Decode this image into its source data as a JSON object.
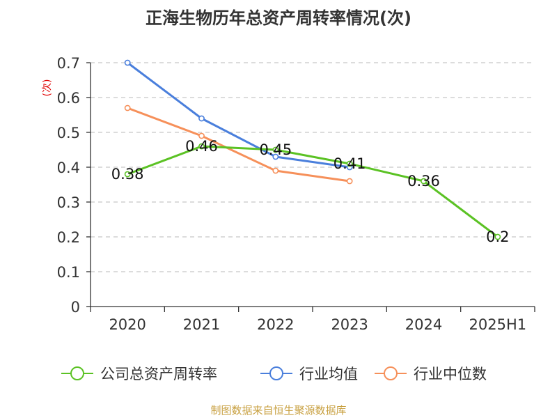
{
  "chart_data": {
    "type": "line",
    "title": "正海生物历年总资产周转率情况(次)",
    "ylabel": "(次)",
    "xlabel": "",
    "categories": [
      "2020",
      "2021",
      "2022",
      "2023",
      "2024",
      "2025H1"
    ],
    "ylim": [
      0,
      0.7
    ],
    "yticks": [
      "0",
      "0.1",
      "0.2",
      "0.3",
      "0.4",
      "0.5",
      "0.6",
      "0.7"
    ],
    "grid": true,
    "legend_position": "bottom",
    "series": [
      {
        "name": "公司总资产周转率",
        "color": "#5bc224",
        "values": [
          0.38,
          0.46,
          0.45,
          0.41,
          0.36,
          0.2
        ],
        "labels": [
          "0.38",
          "0.46",
          "0.45",
          "0.41",
          "0.36",
          "0.2"
        ]
      },
      {
        "name": "行业均值",
        "color": "#4a7fdc",
        "values": [
          0.7,
          0.54,
          0.43,
          0.4,
          null,
          null
        ]
      },
      {
        "name": "行业中位数",
        "color": "#f6905a",
        "values": [
          0.57,
          0.49,
          0.39,
          0.36,
          null,
          null
        ]
      }
    ],
    "source": "制图数据来自恒生聚源数据库"
  }
}
